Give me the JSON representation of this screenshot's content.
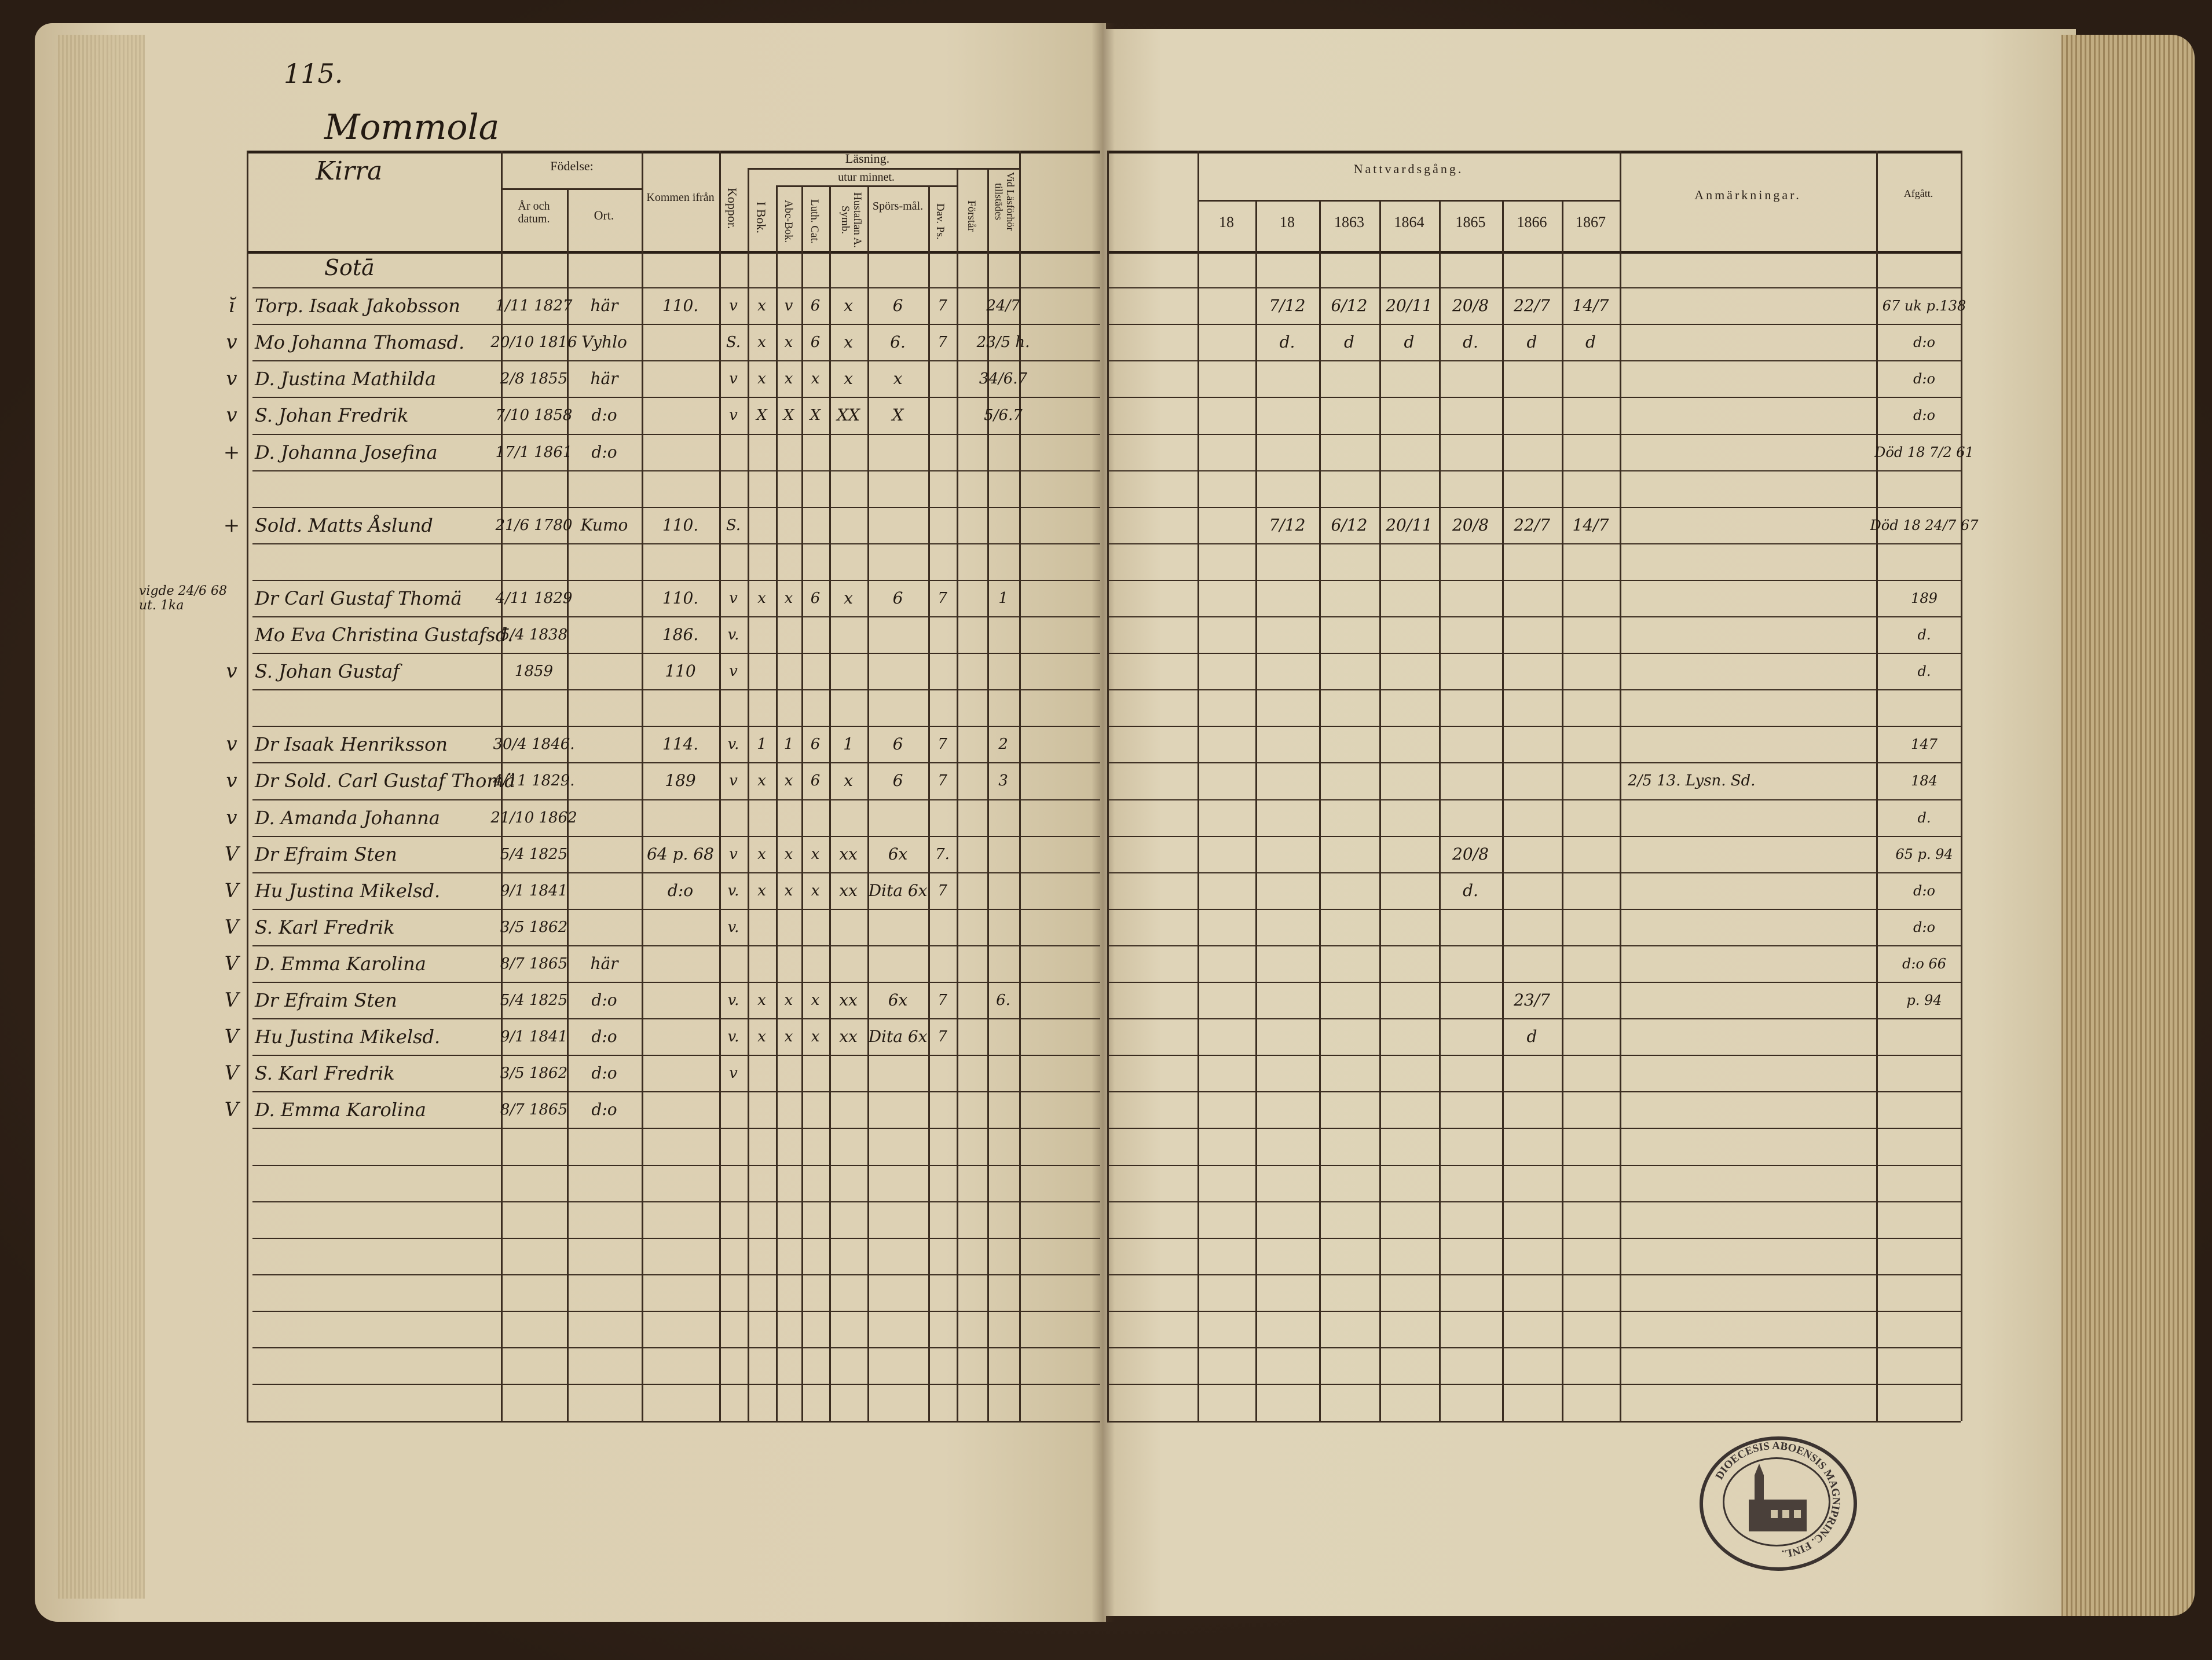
{
  "document": {
    "page_number": "115.",
    "village": "Mommola",
    "farm": "Kirra",
    "section": "Sotā",
    "stamp_text": "DIOECESIS ABOENSIS MAGNIPRINC. FINL."
  },
  "header_left": {
    "birth": "Födelse:",
    "year_date": "År och datum.",
    "place": "Ort.",
    "came_from": "Kommen ifrån",
    "smallpox": "Koppor.",
    "reading": "Läsning.",
    "by_heart": "utur minnet.",
    "in_book": "I Bok.",
    "abc_book": "Abc-Bok.",
    "luth_cat": "Luth. Cat.",
    "hustaflan": "Hustaflan A. Symb.",
    "questions": "Spörs-mål.",
    "dav_ps": "Dav. Ps.",
    "understands": "Förstår",
    "present": "Vid Läsförhör tillstädes"
  },
  "header_right": {
    "communion": "Nattvardsgång.",
    "years": [
      "18",
      "18",
      "1863",
      "1864",
      "1865",
      "1866",
      "1867"
    ],
    "remarks": "Anmärkningar.",
    "departed": "Afgått."
  },
  "rows": [
    {
      "name": "Sotā"
    },
    {
      "mark": "ĭ",
      "name": "Torp. Isaak Jakobsson",
      "born": "1/11 1827",
      "place": "här",
      "from": "110.",
      "koppor": "v",
      "ibok": "x",
      "abe": "v",
      "luth": "6",
      "hust": "x",
      "spors": "6",
      "dav": "7",
      "vid": "24/7",
      "n": [
        "",
        "7/12",
        "6/12",
        "20/11",
        "20/8",
        "22/7",
        "14/7"
      ],
      "afgatt": "67 uk p.138"
    },
    {
      "mark": "v",
      "name": "Mo Johanna Thomasd.",
      "born": "20/10 1816",
      "place": "Vyhlo",
      "koppor": "S.",
      "ibok": "x",
      "abe": "x",
      "luth": "6",
      "hust": "x",
      "spors": "6.",
      "dav": "7",
      "vid": "23/5 h.",
      "n": [
        "",
        "d.",
        "d",
        "d",
        "d.",
        "d",
        "d"
      ],
      "afgatt": "d:o"
    },
    {
      "mark": "v",
      "name": "D. Justina Mathilda",
      "born": "2/8 1855",
      "place": "här",
      "koppor": "v",
      "ibok": "x",
      "abe": "x",
      "luth": "x",
      "hust": "x",
      "spors": "x",
      "vid": "34/6.7",
      "afgatt": "d:o"
    },
    {
      "mark": "v",
      "name": "S. Johan Fredrik",
      "born": "7/10 1858",
      "place": "d:o",
      "koppor": "v",
      "ibok": "X",
      "abe": "X",
      "luth": "X",
      "hust": "XX",
      "spors": "X",
      "vid": "5/6.7",
      "afgatt": "d:o"
    },
    {
      "mark": "+",
      "name": "D. Johanna Josefina",
      "born": "17/1 1861",
      "place": "d:o",
      "afgatt": "Död 18 7/2 61"
    },
    {},
    {
      "mark": "+",
      "name": "Sold. Matts Åslund",
      "born": "21/6 1780",
      "place": "Kumo",
      "from": "110.",
      "koppor": "S.",
      "n": [
        "",
        "7/12",
        "6/12",
        "20/11",
        "20/8",
        "22/7",
        "14/7"
      ],
      "afgatt": "Död 18 24/7 67"
    },
    {},
    {
      "mark": "vigde 24/6 68 ut. 1ka",
      "name": "Dr Carl Gustaf Thomä",
      "born": "4/11 1829",
      "from": "110.",
      "koppor": "v",
      "ibok": "x",
      "abe": "x",
      "luth": "6",
      "hust": "x",
      "spors": "6",
      "dav": "7",
      "vid": "1",
      "afgatt": "189"
    },
    {
      "name": "Mo Eva Christina Gustafsd.",
      "born": "5/4 1838",
      "from": "186.",
      "koppor": "v.",
      "afgatt": "d."
    },
    {
      "mark": "v",
      "name": "S. Johan Gustaf",
      "born": "1859",
      "from": "110",
      "koppor": "v",
      "afgatt": "d."
    },
    {},
    {
      "mark": "v",
      "name": "Dr Isaak Henriksson",
      "born": "30/4 1846.",
      "from": "114.",
      "koppor": "v.",
      "ibok": "1",
      "abe": "1",
      "luth": "6",
      "hust": "1",
      "spors": "6",
      "dav": "7",
      "vid": "2",
      "afgatt": "147"
    },
    {
      "mark": "v",
      "name": "Dr Sold. Carl Gustaf Thomä",
      "born": "4/11 1829.",
      "from": "189",
      "koppor": "v",
      "ibok": "x",
      "abe": "x",
      "luth": "6",
      "hust": "x",
      "spors": "6",
      "dav": "7",
      "vid": "3",
      "anm": "2/5 13. Lysn. Sd.",
      "afgatt": "184"
    },
    {
      "mark": "v",
      "name": "D. Amanda Johanna",
      "born": "21/10 1862",
      "afgatt": "d."
    },
    {
      "mark": "V",
      "name": "Dr Efraim Sten",
      "born": "5/4 1825",
      "from": "64 p. 68",
      "koppor": "v",
      "ibok": "x",
      "abe": "x",
      "luth": "x",
      "hust": "xx",
      "spors": "6x",
      "dav": "7.",
      "n": [
        "",
        "",
        "",
        "",
        "20/8",
        "",
        ""
      ],
      "afgatt": "65 p. 94"
    },
    {
      "mark": "V",
      "name": "Hu Justina Mikelsd.",
      "born": "9/1 1841",
      "from": "d:o",
      "koppor": "v.",
      "ibok": "x",
      "abe": "x",
      "luth": "x",
      "hust": "xx",
      "spors": "Dita 6x",
      "dav": "7",
      "n": [
        "",
        "",
        "",
        "",
        "d.",
        "",
        ""
      ],
      "afgatt": "d:o"
    },
    {
      "mark": "V",
      "name": "S. Karl Fredrik",
      "born": "3/5 1862",
      "koppor": "v.",
      "afgatt": "d:o"
    },
    {
      "mark": "V",
      "name": "D. Emma Karolina",
      "born": "8/7 1865",
      "place": "här",
      "afgatt": "d:o 66"
    },
    {
      "mark": "V",
      "name": "Dr Efraim Sten",
      "born": "5/4 1825",
      "place": "d:o",
      "koppor": "v.",
      "ibok": "x",
      "abe": "x",
      "luth": "x",
      "hust": "xx",
      "spors": "6x",
      "dav": "7",
      "vid": "6.",
      "n": [
        "",
        "",
        "",
        "",
        "",
        "23/7",
        ""
      ],
      "afgatt": "p. 94"
    },
    {
      "mark": "V",
      "name": "Hu Justina Mikelsd.",
      "born": "9/1 1841",
      "place": "d:o",
      "koppor": "v.",
      "ibok": "x",
      "abe": "x",
      "luth": "x",
      "hust": "xx",
      "spors": "Dita 6x",
      "dav": "7",
      "n": [
        "",
        "",
        "",
        "",
        "",
        "d",
        ""
      ]
    },
    {
      "mark": "V",
      "name": "S. Karl Fredrik",
      "born": "3/5 1862",
      "place": "d:o",
      "koppor": "v"
    },
    {
      "mark": "V",
      "name": "D. Emma Karolina",
      "born": "8/7 1865",
      "place": "d:o"
    }
  ],
  "colors": {
    "paper": "#ddd1b4",
    "ink": "#231a12",
    "cover": "#2e2118"
  }
}
